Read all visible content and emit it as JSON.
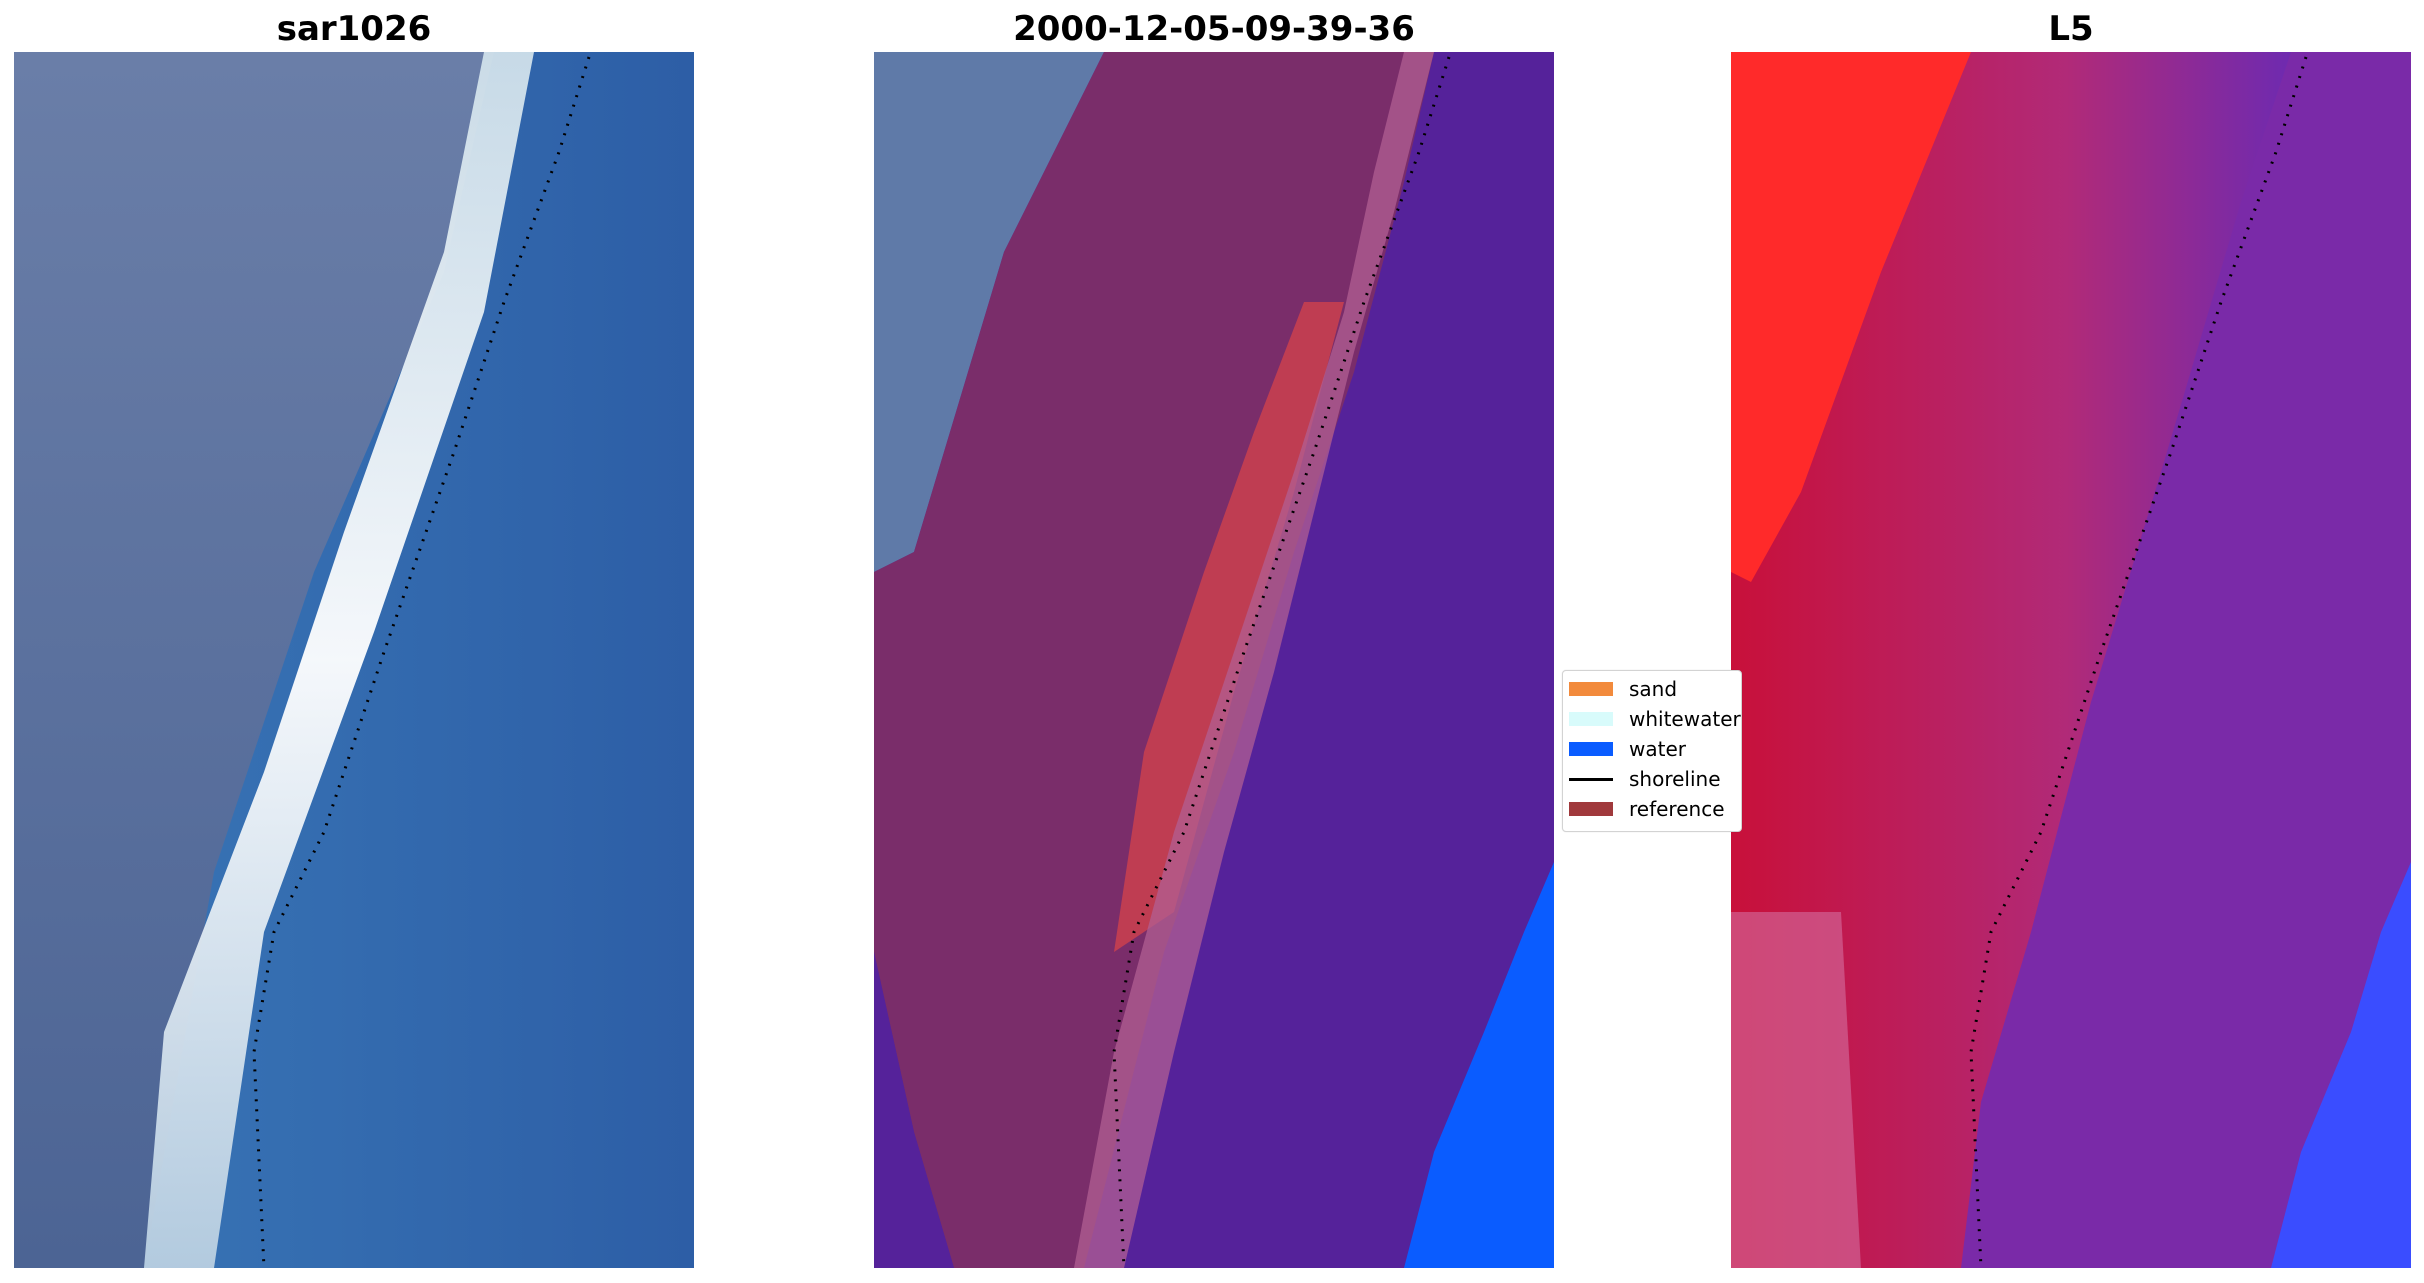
{
  "panels": [
    {
      "title": "sar1026"
    },
    {
      "title": "2000-12-05-09-39-36"
    },
    {
      "title": "L5"
    }
  ],
  "legend": {
    "items": [
      {
        "label": "sand",
        "color": "#f28a3c",
        "kind": "patch"
      },
      {
        "label": "whitewater",
        "color": "#d8fbfb",
        "kind": "patch"
      },
      {
        "label": "water",
        "color": "#0a5cff",
        "kind": "patch"
      },
      {
        "label": "shoreline",
        "color": "#000000",
        "kind": "line"
      },
      {
        "label": "reference",
        "color": "#a0393c",
        "kind": "patch"
      }
    ]
  },
  "colors": {
    "land_blue_gray": "#5c6f9c",
    "sea_blue": "#2f6cae",
    "whitewater": "#e6f2f4",
    "classified_land": "#7a2d6a",
    "classified_sea": "#55229a",
    "classified_sand": "#bf3d52",
    "classified_water": "#0a5cff",
    "index_red": "#c8103a",
    "index_bright_red": "#ff2a2a",
    "index_purple": "#7a2aa8",
    "index_blue": "#3a4dff"
  }
}
